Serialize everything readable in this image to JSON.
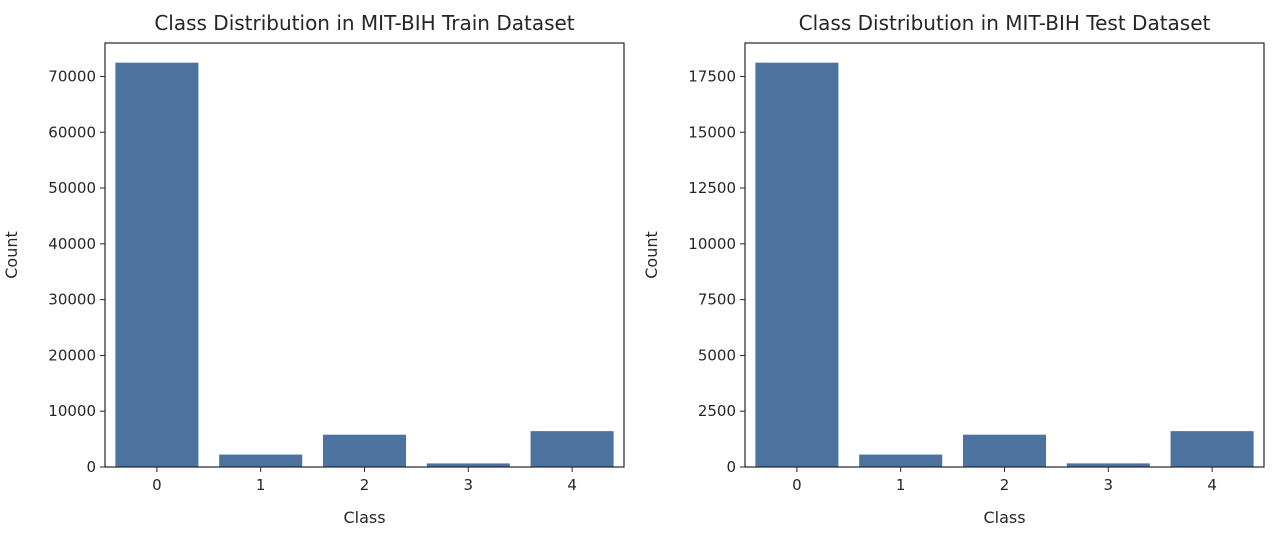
{
  "chart_data": [
    {
      "type": "bar",
      "title": "Class Distribution in MIT-BIH Train Dataset",
      "xlabel": "Class",
      "ylabel": "Count",
      "categories": [
        "0",
        "1",
        "2",
        "3",
        "4"
      ],
      "values": [
        72471,
        2223,
        5788,
        641,
        6431
      ],
      "ylim": [
        0,
        76000
      ],
      "yticks": [
        0,
        10000,
        20000,
        30000,
        40000,
        50000,
        60000,
        70000
      ],
      "bar_color": "#4c72a0",
      "grid": false
    },
    {
      "type": "bar",
      "title": "Class Distribution in MIT-BIH Test Dataset",
      "xlabel": "Class",
      "ylabel": "Count",
      "categories": [
        "0",
        "1",
        "2",
        "3",
        "4"
      ],
      "values": [
        18118,
        556,
        1448,
        162,
        1608
      ],
      "ylim": [
        0,
        19000
      ],
      "yticks": [
        0,
        2500,
        5000,
        7500,
        10000,
        12500,
        15000,
        17500
      ],
      "bar_color": "#4c72a0",
      "grid": false
    }
  ]
}
